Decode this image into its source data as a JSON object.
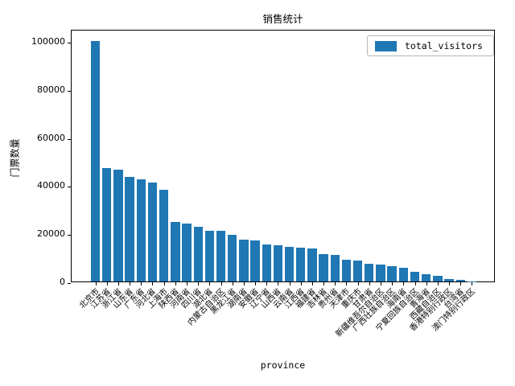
{
  "figure": {
    "title": "销售统计",
    "bar_color": "#1f77b4",
    "legend": {
      "label": "total_visitors",
      "swatch_color": "#1f77b4"
    }
  },
  "chart_data": {
    "type": "bar",
    "title": "销售统计",
    "xlabel": "province",
    "ylabel": "门票数量",
    "legend": [
      "total_visitors"
    ],
    "legend_position": "upper right",
    "grid": false,
    "ylim": [
      0,
      105000
    ],
    "yticks": [
      0,
      20000,
      40000,
      60000,
      80000,
      100000
    ],
    "categories": [
      "北京市",
      "江苏省",
      "浙江省",
      "山东省",
      "广东省",
      "河北省",
      "上海市",
      "陕西省",
      "河南省",
      "四川省",
      "湖北省",
      "内蒙古自治区",
      "黑龙江省",
      "湖南省",
      "安徽省",
      "辽宁省",
      "山西省",
      "云南省",
      "江西省",
      "福建省",
      "吉林省",
      "贵州省",
      "天津市",
      "重庆市",
      "甘肃省",
      "新疆维吾尔自治区",
      "广西壮族自治区",
      "海南省",
      "宁夏回族自治区",
      "青海省",
      "西藏自治区",
      "香港特别行政区",
      "台湾省",
      "澳门特别行政区"
    ],
    "values": [
      100000,
      47000,
      46500,
      43500,
      42600,
      41000,
      38000,
      24800,
      24000,
      22800,
      21200,
      21100,
      19400,
      17500,
      17000,
      15300,
      15200,
      14500,
      14200,
      13700,
      11300,
      11100,
      8900,
      8800,
      7300,
      6900,
      6500,
      5800,
      3900,
      3000,
      2200,
      900,
      800,
      150
    ]
  }
}
